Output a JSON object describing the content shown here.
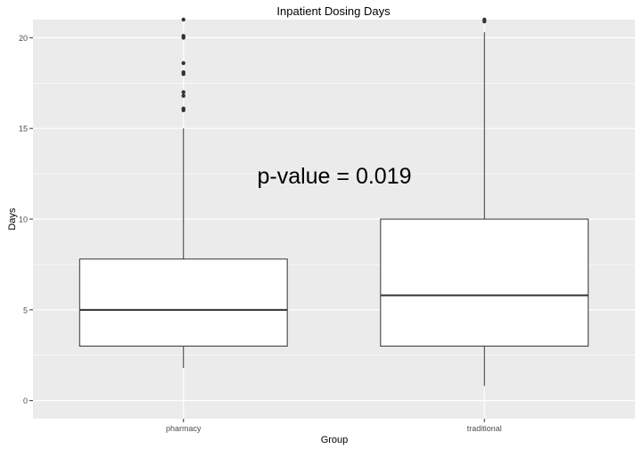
{
  "chart_data": {
    "type": "boxplot",
    "title": "Inpatient Dosing Days",
    "xlabel": "Group",
    "ylabel": "Days",
    "annotation": "p-value = 0.019",
    "ylim": [
      -1,
      21
    ],
    "yticks": [
      0,
      5,
      10,
      15,
      20
    ],
    "categories": [
      "pharmacy",
      "traditional"
    ],
    "boxes": [
      {
        "category": "pharmacy",
        "whisker_low": 1.8,
        "q1": 3,
        "median": 5,
        "q3": 7.8,
        "whisker_high": 15,
        "outliers": [
          16,
          16.1,
          16.8,
          17,
          18,
          18.1,
          18.6,
          20,
          20.1,
          21
        ]
      },
      {
        "category": "traditional",
        "whisker_low": 0.8,
        "q1": 3,
        "median": 5.8,
        "q3": 10,
        "whisker_high": 20.3,
        "outliers": [
          20.9,
          21
        ]
      }
    ],
    "grid": true,
    "background": "#ebebeb",
    "grid_color": "#ffffff",
    "box_fill": "#ffffff",
    "line_color": "#333333"
  }
}
